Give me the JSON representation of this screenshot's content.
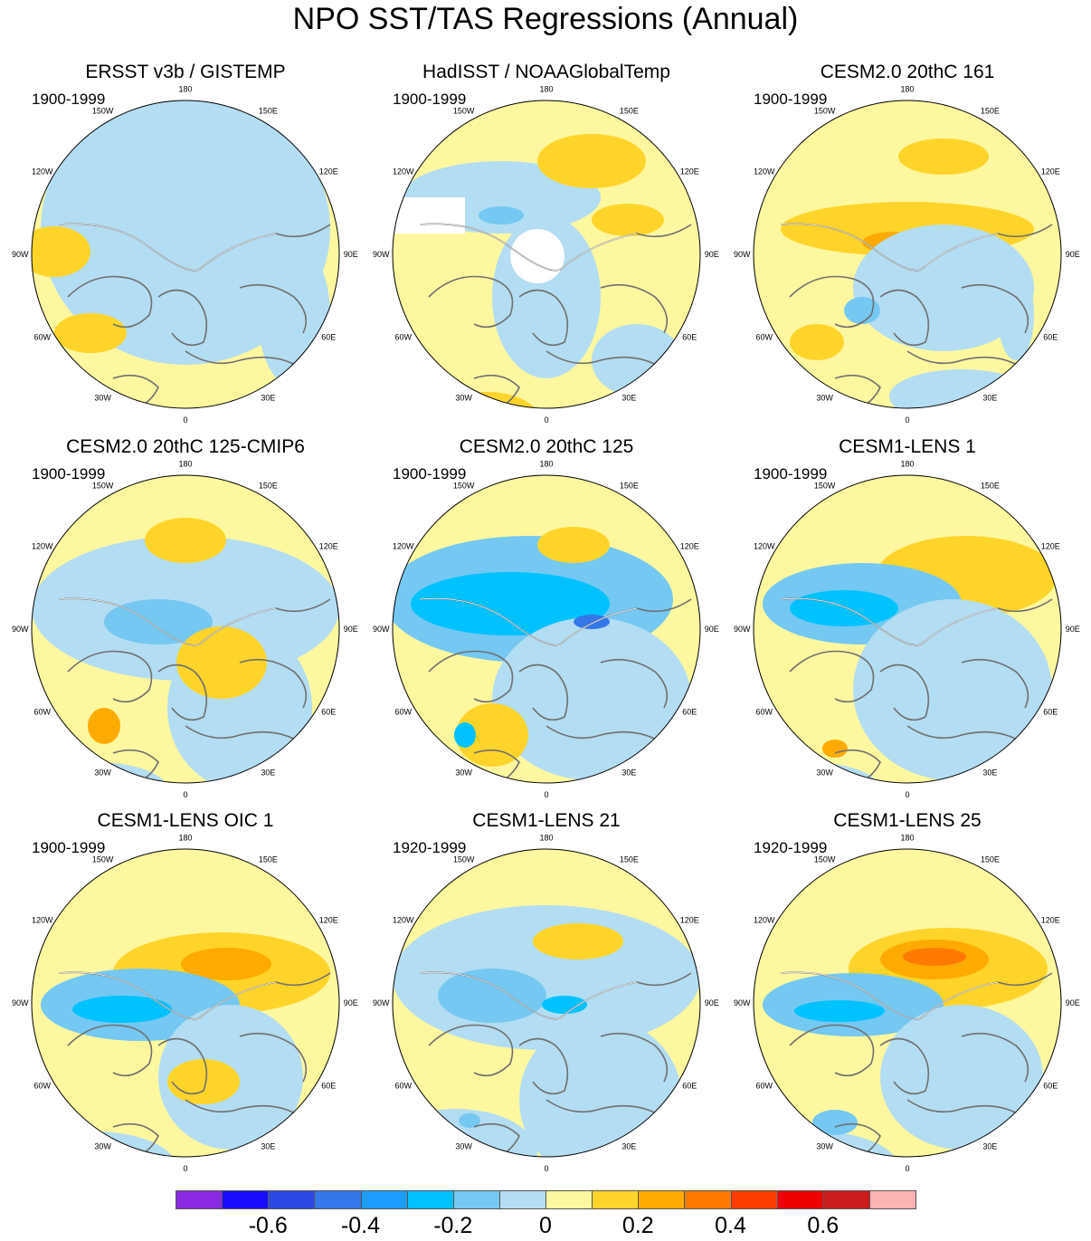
{
  "title": "NPO SST/TAS Regressions (Annual)",
  "lon_labels": [
    "180",
    "150E",
    "120E",
    "90E",
    "60E",
    "30E",
    "0",
    "30W",
    "60W",
    "90W",
    "120W",
    "150W"
  ],
  "panels": [
    {
      "title": "ERSST v3b / GISTEMP",
      "period": "1900-1999"
    },
    {
      "title": "HadISST / NOAAGlobalTemp",
      "period": "1900-1999"
    },
    {
      "title": "CESM2.0 20thC 161",
      "period": "1900-1999"
    },
    {
      "title": "CESM2.0 20thC 125-CMIP6",
      "period": "1900-1999"
    },
    {
      "title": "CESM2.0 20thC 125",
      "period": "1900-1999"
    },
    {
      "title": "CESM1-LENS 1",
      "period": "1900-1999"
    },
    {
      "title": "CESM1-LENS OIC 1",
      "period": "1900-1999"
    },
    {
      "title": "CESM1-LENS 21",
      "period": "1920-1999"
    },
    {
      "title": "CESM1-LENS 25",
      "period": "1920-1999"
    }
  ],
  "colorbar": {
    "colors": [
      "#8a2be2",
      "#1a0dff",
      "#2e48e6",
      "#3477e8",
      "#1e9bff",
      "#00c2ff",
      "#74c8f2",
      "#b3ddf2",
      "#fdf7a0",
      "#ffd42a",
      "#ffaa00",
      "#ff7a00",
      "#ff3c00",
      "#ef0000",
      "#cc1d1d",
      "#ffb4b4"
    ],
    "labels": [
      "-0.6",
      "-0.4",
      "-0.2",
      "0",
      "0.2",
      "0.4",
      "0.6"
    ]
  }
}
